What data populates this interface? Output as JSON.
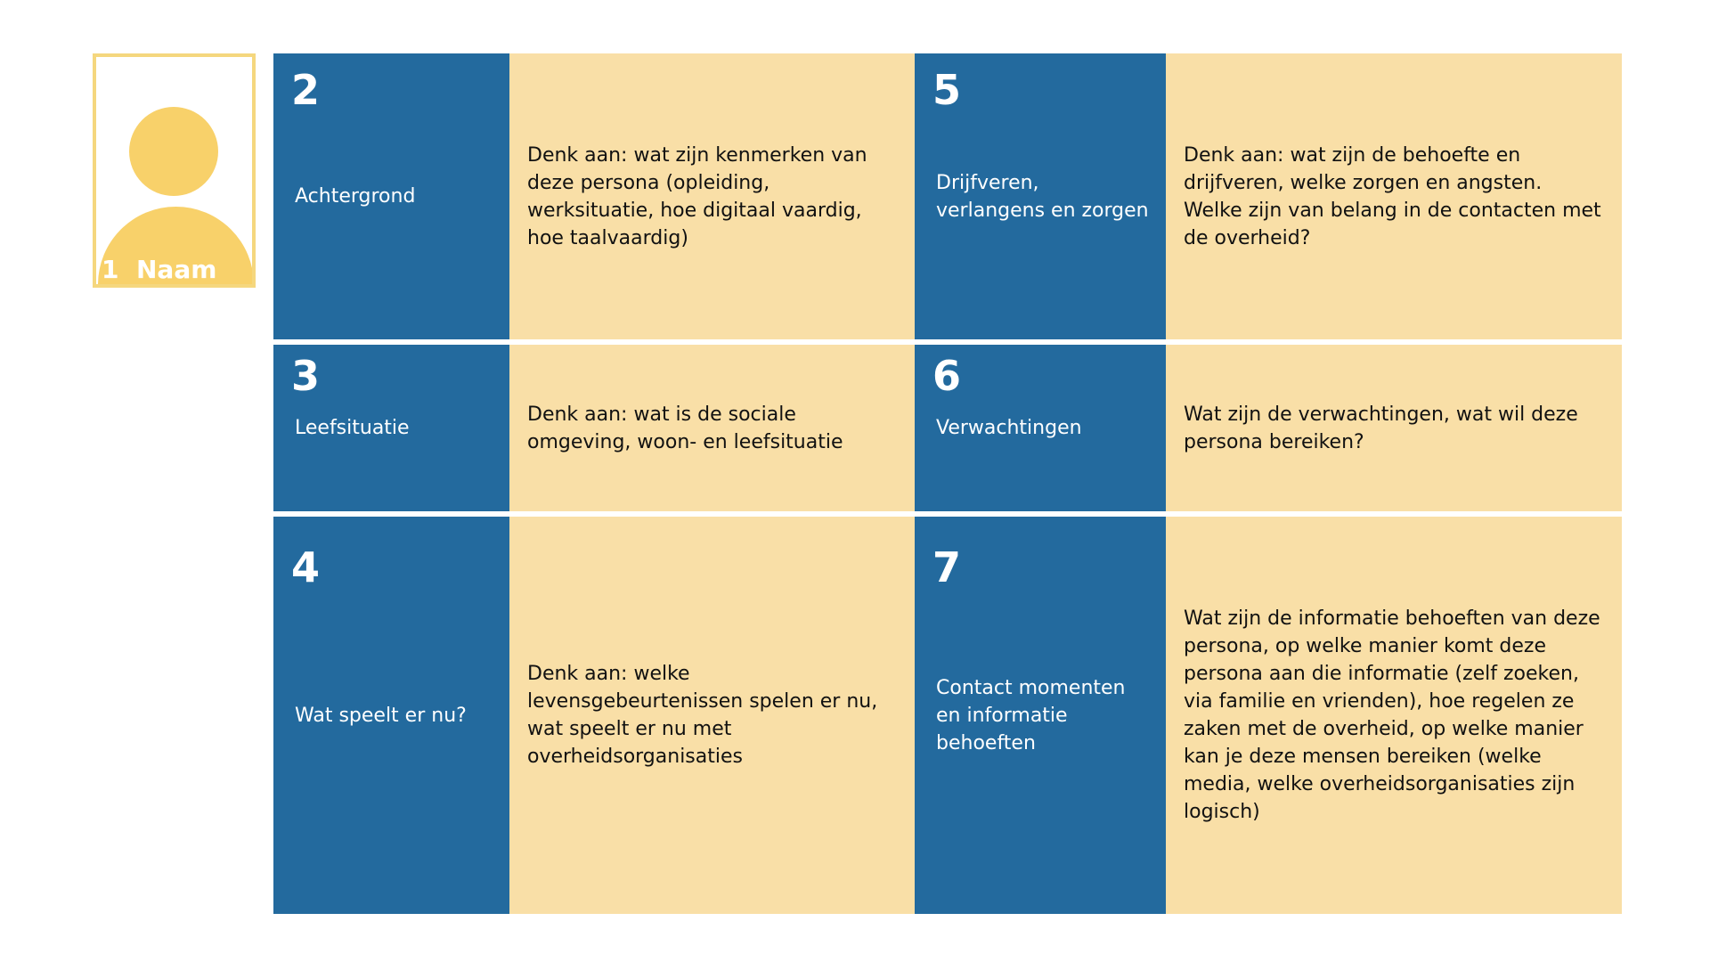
{
  "persona": {
    "number": "1",
    "name": "Naam"
  },
  "sections": [
    {
      "number": "2",
      "title": "Achtergrond",
      "description": "Denk aan: wat zijn kenmerken van deze persona (opleiding, werksituatie, hoe digitaal vaardig, hoe taalvaardig)"
    },
    {
      "number": "5",
      "title": "Drijfveren, verlangens en zorgen",
      "description": "Denk aan: wat zijn de behoefte en drijfveren, welke zorgen en angsten. Welke zijn van belang in de contacten met de overheid?"
    },
    {
      "number": "3",
      "title": "Leefsituatie",
      "description": "Denk aan: wat is de sociale omgeving, woon- en leefsituatie"
    },
    {
      "number": "6",
      "title": "Verwachtingen",
      "description": "Wat zijn de verwachtingen, wat wil deze persona bereiken?"
    },
    {
      "number": "4",
      "title": "Wat speelt er nu?",
      "description": "Denk aan: welke levensgebeurtenissen spelen er nu, wat speelt er nu met overheidsorganisaties"
    },
    {
      "number": "7",
      "title": "Contact momenten en informatie behoeften",
      "description": "Wat zijn de informatie behoeften van deze persona, op welke manier komt deze persona aan die informatie (zelf zoeken, via familie en vrienden), hoe regelen ze zaken met de overheid, op welke manier kan je deze mensen bereiken (welke media, welke overheidsorganisaties zijn logisch)"
    }
  ]
}
